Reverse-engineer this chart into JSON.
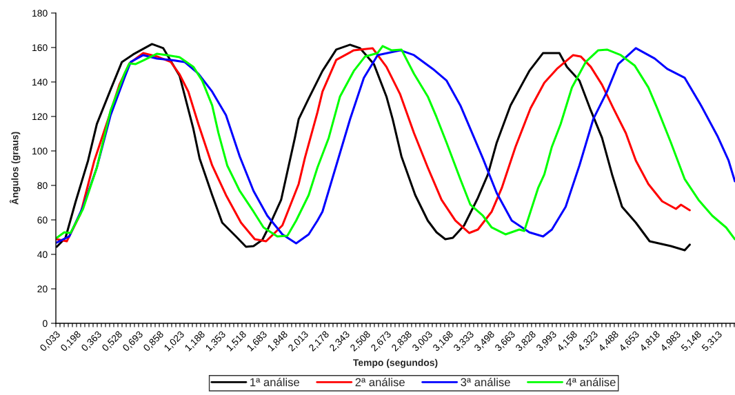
{
  "chart_data": {
    "type": "line",
    "xlabel": "Tempo (segundos)",
    "ylabel": "Ângulos (graus)",
    "xlim": [
      0.033,
      5.451
    ],
    "ylim": [
      0,
      180
    ],
    "yticks": [
      0,
      20,
      40,
      60,
      80,
      100,
      120,
      140,
      160,
      180
    ],
    "xticks": [
      {
        "value": 0.033,
        "label": "0,033"
      },
      {
        "value": 0.066,
        "label": null
      },
      {
        "value": 0.099,
        "label": null
      },
      {
        "value": 0.132,
        "label": null
      },
      {
        "value": 0.165,
        "label": null
      },
      {
        "value": 0.198,
        "label": "0,198"
      },
      {
        "value": 0.231,
        "label": null
      },
      {
        "value": 0.264,
        "label": null
      },
      {
        "value": 0.297,
        "label": null
      },
      {
        "value": 0.33,
        "label": null
      },
      {
        "value": 0.363,
        "label": "0,363"
      },
      {
        "value": 0.396,
        "label": null
      },
      {
        "value": 0.429,
        "label": null
      },
      {
        "value": 0.462,
        "label": null
      },
      {
        "value": 0.495,
        "label": null
      },
      {
        "value": 0.528,
        "label": "0,528"
      },
      {
        "value": 0.561,
        "label": null
      },
      {
        "value": 0.594,
        "label": null
      },
      {
        "value": 0.627,
        "label": null
      },
      {
        "value": 0.66,
        "label": null
      },
      {
        "value": 0.693,
        "label": "0,693"
      },
      {
        "value": 0.726,
        "label": null
      },
      {
        "value": 0.759,
        "label": null
      },
      {
        "value": 0.792,
        "label": null
      },
      {
        "value": 0.825,
        "label": null
      },
      {
        "value": 0.858,
        "label": "0,858"
      },
      {
        "value": 0.891,
        "label": null
      },
      {
        "value": 0.924,
        "label": null
      },
      {
        "value": 0.957,
        "label": null
      },
      {
        "value": 0.99,
        "label": null
      },
      {
        "value": 1.023,
        "label": "1,023"
      },
      {
        "value": 1.056,
        "label": null
      },
      {
        "value": 1.089,
        "label": null
      },
      {
        "value": 1.122,
        "label": null
      },
      {
        "value": 1.155,
        "label": null
      },
      {
        "value": 1.188,
        "label": "1,188"
      },
      {
        "value": 1.221,
        "label": null
      },
      {
        "value": 1.254,
        "label": null
      },
      {
        "value": 1.287,
        "label": null
      },
      {
        "value": 1.32,
        "label": null
      },
      {
        "value": 1.353,
        "label": "1,353"
      },
      {
        "value": 1.386,
        "label": null
      },
      {
        "value": 1.419,
        "label": null
      },
      {
        "value": 1.452,
        "label": null
      },
      {
        "value": 1.485,
        "label": null
      },
      {
        "value": 1.518,
        "label": "1,518"
      },
      {
        "value": 1.551,
        "label": null
      },
      {
        "value": 1.584,
        "label": null
      },
      {
        "value": 1.617,
        "label": null
      },
      {
        "value": 1.65,
        "label": null
      },
      {
        "value": 1.683,
        "label": "1,683"
      },
      {
        "value": 1.716,
        "label": null
      },
      {
        "value": 1.749,
        "label": null
      },
      {
        "value": 1.782,
        "label": null
      },
      {
        "value": 1.815,
        "label": null
      },
      {
        "value": 1.848,
        "label": "1,848"
      },
      {
        "value": 1.881,
        "label": null
      },
      {
        "value": 1.914,
        "label": null
      },
      {
        "value": 1.947,
        "label": null
      },
      {
        "value": 1.98,
        "label": null
      },
      {
        "value": 2.013,
        "label": "2,013"
      },
      {
        "value": 2.046,
        "label": null
      },
      {
        "value": 2.079,
        "label": null
      },
      {
        "value": 2.112,
        "label": null
      },
      {
        "value": 2.145,
        "label": null
      },
      {
        "value": 2.178,
        "label": "2,178"
      },
      {
        "value": 2.211,
        "label": null
      },
      {
        "value": 2.244,
        "label": null
      },
      {
        "value": 2.277,
        "label": null
      },
      {
        "value": 2.31,
        "label": null
      },
      {
        "value": 2.343,
        "label": "2,343"
      },
      {
        "value": 2.376,
        "label": null
      },
      {
        "value": 2.409,
        "label": null
      },
      {
        "value": 2.442,
        "label": null
      },
      {
        "value": 2.475,
        "label": null
      },
      {
        "value": 2.508,
        "label": "2,508"
      },
      {
        "value": 2.541,
        "label": null
      },
      {
        "value": 2.574,
        "label": null
      },
      {
        "value": 2.607,
        "label": null
      },
      {
        "value": 2.64,
        "label": null
      },
      {
        "value": 2.673,
        "label": "2,673"
      },
      {
        "value": 2.706,
        "label": null
      },
      {
        "value": 2.739,
        "label": null
      },
      {
        "value": 2.772,
        "label": null
      },
      {
        "value": 2.805,
        "label": null
      },
      {
        "value": 2.838,
        "label": "2,838"
      },
      {
        "value": 2.871,
        "label": null
      },
      {
        "value": 2.904,
        "label": null
      },
      {
        "value": 2.937,
        "label": null
      },
      {
        "value": 2.97,
        "label": null
      },
      {
        "value": 3.003,
        "label": "3,003"
      },
      {
        "value": 3.036,
        "label": null
      },
      {
        "value": 3.069,
        "label": null
      },
      {
        "value": 3.102,
        "label": null
      },
      {
        "value": 3.135,
        "label": null
      },
      {
        "value": 3.168,
        "label": "3,168"
      },
      {
        "value": 3.201,
        "label": null
      },
      {
        "value": 3.234,
        "label": null
      },
      {
        "value": 3.267,
        "label": null
      },
      {
        "value": 3.3,
        "label": null
      },
      {
        "value": 3.333,
        "label": "3,333"
      },
      {
        "value": 3.366,
        "label": null
      },
      {
        "value": 3.399,
        "label": null
      },
      {
        "value": 3.432,
        "label": null
      },
      {
        "value": 3.465,
        "label": null
      },
      {
        "value": 3.498,
        "label": "3,498"
      },
      {
        "value": 3.531,
        "label": null
      },
      {
        "value": 3.564,
        "label": null
      },
      {
        "value": 3.597,
        "label": null
      },
      {
        "value": 3.63,
        "label": null
      },
      {
        "value": 3.663,
        "label": "3,663"
      },
      {
        "value": 3.696,
        "label": null
      },
      {
        "value": 3.729,
        "label": null
      },
      {
        "value": 3.762,
        "label": null
      },
      {
        "value": 3.795,
        "label": null
      },
      {
        "value": 3.828,
        "label": "3,828"
      },
      {
        "value": 3.861,
        "label": null
      },
      {
        "value": 3.894,
        "label": null
      },
      {
        "value": 3.927,
        "label": null
      },
      {
        "value": 3.96,
        "label": null
      },
      {
        "value": 3.993,
        "label": "3,993"
      },
      {
        "value": 4.026,
        "label": null
      },
      {
        "value": 4.059,
        "label": null
      },
      {
        "value": 4.092,
        "label": null
      },
      {
        "value": 4.125,
        "label": null
      },
      {
        "value": 4.158,
        "label": "4,158"
      },
      {
        "value": 4.191,
        "label": null
      },
      {
        "value": 4.224,
        "label": null
      },
      {
        "value": 4.257,
        "label": null
      },
      {
        "value": 4.29,
        "label": null
      },
      {
        "value": 4.323,
        "label": "4,323"
      },
      {
        "value": 4.356,
        "label": null
      },
      {
        "value": 4.389,
        "label": null
      },
      {
        "value": 4.422,
        "label": null
      },
      {
        "value": 4.455,
        "label": null
      },
      {
        "value": 4.488,
        "label": "4,488"
      },
      {
        "value": 4.521,
        "label": null
      },
      {
        "value": 4.554,
        "label": null
      },
      {
        "value": 4.587,
        "label": null
      },
      {
        "value": 4.62,
        "label": null
      },
      {
        "value": 4.653,
        "label": "4,653"
      },
      {
        "value": 4.686,
        "label": null
      },
      {
        "value": 4.719,
        "label": null
      },
      {
        "value": 4.752,
        "label": null
      },
      {
        "value": 4.785,
        "label": null
      },
      {
        "value": 4.818,
        "label": "4,818"
      },
      {
        "value": 4.851,
        "label": null
      },
      {
        "value": 4.884,
        "label": null
      },
      {
        "value": 4.917,
        "label": null
      },
      {
        "value": 4.95,
        "label": null
      },
      {
        "value": 4.983,
        "label": "4,983"
      },
      {
        "value": 5.016,
        "label": null
      },
      {
        "value": 5.049,
        "label": null
      },
      {
        "value": 5.082,
        "label": null
      },
      {
        "value": 5.115,
        "label": null
      },
      {
        "value": 5.148,
        "label": "5,148"
      },
      {
        "value": 5.181,
        "label": null
      },
      {
        "value": 5.214,
        "label": null
      },
      {
        "value": 5.247,
        "label": null
      },
      {
        "value": 5.28,
        "label": null
      },
      {
        "value": 5.313,
        "label": "5,313"
      },
      {
        "value": 5.346,
        "label": null
      },
      {
        "value": 5.379,
        "label": null
      },
      {
        "value": 5.412,
        "label": null
      },
      {
        "value": 5.445,
        "label": null
      }
    ],
    "grid": false,
    "legend": "bottom",
    "marker": "none",
    "line_style": "solid",
    "series": [
      {
        "name": "1ª análise",
        "color": "#000000",
        "x": [
          0.04,
          0.11,
          0.19,
          0.29,
          0.36,
          0.47,
          0.56,
          0.65,
          0.8,
          0.89,
          1.02,
          1.13,
          1.18,
          1.28,
          1.36,
          1.47,
          1.55,
          1.61,
          1.68,
          1.73,
          1.83,
          1.94,
          1.97,
          2.05,
          2.16,
          2.27,
          2.38,
          2.46,
          2.57,
          2.67,
          2.72,
          2.79,
          2.9,
          3.0,
          3.07,
          3.14,
          3.2,
          3.29,
          3.4,
          3.48,
          3.55,
          3.66,
          3.81,
          3.92,
          4.05,
          4.11,
          4.21,
          4.3,
          4.39,
          4.47,
          4.55,
          4.66,
          4.77,
          4.94,
          5.05,
          5.09
        ],
        "values": [
          44.4,
          49.6,
          70.4,
          94.4,
          115.6,
          135.6,
          151.6,
          156,
          162,
          159.6,
          143.6,
          112.8,
          95.6,
          74.4,
          58.4,
          50.4,
          44.4,
          44.8,
          48.4,
          55.6,
          71.6,
          107.6,
          118.4,
          130.4,
          146.4,
          158.8,
          161.6,
          159.6,
          150.4,
          131.6,
          118.4,
          96.8,
          74.4,
          59.6,
          52.8,
          48.8,
          49.6,
          56.8,
          72.8,
          86.4,
          104.8,
          126.4,
          146.4,
          156.8,
          156.8,
          148.8,
          140.8,
          123.6,
          107.6,
          86.4,
          67.6,
          58.4,
          47.6,
          44.8,
          42.4,
          45.6
        ]
      },
      {
        "name": "2ª análise",
        "color": "#ff0000",
        "x": [
          0.04,
          0.12,
          0.23,
          0.34,
          0.45,
          0.54,
          0.62,
          0.73,
          0.84,
          0.95,
          1.02,
          1.09,
          1.17,
          1.28,
          1.39,
          1.51,
          1.62,
          1.71,
          1.84,
          1.97,
          2.02,
          2.12,
          2.16,
          2.27,
          2.41,
          2.56,
          2.67,
          2.78,
          2.89,
          3.0,
          3.11,
          3.22,
          3.33,
          3.4,
          3.51,
          3.59,
          3.7,
          3.82,
          3.93,
          4.03,
          4.16,
          4.22,
          4.3,
          4.39,
          4.48,
          4.58,
          4.66,
          4.76,
          4.87,
          4.98,
          5.02,
          5.09
        ],
        "values": [
          48.8,
          47.6,
          63.6,
          94.4,
          118.4,
          138.4,
          150.8,
          156.8,
          154.8,
          151.6,
          144.4,
          134.4,
          115.6,
          91.6,
          74.4,
          58.4,
          48.8,
          47.6,
          56.8,
          80.8,
          96,
          122.4,
          134.4,
          152.8,
          158.4,
          159.6,
          148.8,
          132.8,
          110.4,
          90.4,
          71.6,
          59.6,
          52.4,
          54.4,
          64.8,
          78.4,
          102.4,
          124.8,
          139.6,
          147.6,
          155.6,
          154.8,
          148.8,
          138.4,
          124.8,
          110.4,
          94.4,
          80.8,
          70.8,
          66.4,
          68.8,
          65.6
        ]
      },
      {
        "name": "3ª análise",
        "color": "#0000ff",
        "x": [
          0.04,
          0.14,
          0.25,
          0.36,
          0.47,
          0.58,
          0.63,
          0.73,
          0.84,
          0.95,
          1.06,
          1.17,
          1.28,
          1.39,
          1.5,
          1.61,
          1.72,
          1.84,
          1.95,
          2.05,
          2.12,
          2.16,
          2.27,
          2.38,
          2.49,
          2.6,
          2.78,
          2.89,
          3.04,
          3.15,
          3.26,
          3.37,
          3.44,
          3.55,
          3.67,
          3.81,
          3.92,
          3.99,
          4.1,
          4.21,
          4.32,
          4.43,
          4.52,
          4.66,
          4.81,
          4.91,
          5.05,
          5.18,
          5.31,
          5.4,
          5.45
        ],
        "values": [
          46.8,
          50.4,
          67.6,
          90.4,
          120.8,
          142.4,
          151.6,
          155.6,
          153.6,
          152.8,
          151.6,
          144.8,
          134.4,
          120.8,
          96.8,
          76.8,
          62.4,
          51.6,
          46.4,
          51.6,
          59.6,
          64.8,
          91.6,
          118.4,
          142.4,
          155.6,
          158.4,
          155.6,
          147.6,
          140.8,
          126.4,
          107.6,
          95.6,
          75.6,
          59.6,
          52.8,
          50.4,
          54.4,
          67.6,
          91.6,
          118.4,
          134.4,
          150.4,
          159.6,
          153.6,
          147.6,
          142.4,
          126.4,
          108.8,
          94.4,
          82.4
        ]
      },
      {
        "name": "4ª análise",
        "color": "#00ff00",
        "x": [
          0.04,
          0.1,
          0.15,
          0.25,
          0.36,
          0.47,
          0.58,
          0.62,
          0.67,
          0.74,
          0.84,
          0.92,
          1.02,
          1.13,
          1.2,
          1.28,
          1.33,
          1.4,
          1.5,
          1.61,
          1.69,
          1.8,
          1.88,
          1.95,
          2.05,
          2.12,
          2.21,
          2.3,
          2.41,
          2.5,
          2.6,
          2.64,
          2.71,
          2.79,
          2.89,
          3.0,
          3.07,
          3.15,
          3.26,
          3.34,
          3.44,
          3.51,
          3.62,
          3.73,
          3.77,
          3.88,
          3.93,
          3.99,
          4.06,
          4.15,
          4.26,
          4.36,
          4.43,
          4.54,
          4.65,
          4.76,
          4.83,
          4.94,
          5.05,
          5.16,
          5.27,
          5.38,
          5.45
        ],
        "values": [
          49.6,
          52.8,
          52.4,
          66.4,
          90.4,
          123.6,
          144.8,
          150.8,
          150.4,
          152.8,
          156.4,
          155.6,
          154.4,
          148.8,
          140.8,
          126.4,
          110.4,
          91.6,
          76.8,
          64.8,
          55.6,
          50.4,
          50.8,
          59.6,
          74.4,
          90.4,
          107.6,
          131.6,
          146.4,
          154.8,
          156.8,
          160.8,
          158.4,
          158.8,
          144.8,
          131.6,
          119.6,
          104.8,
          83.6,
          68.8,
          62.4,
          55.6,
          51.6,
          54.4,
          53.6,
          78.4,
          86.4,
          102.4,
          115.6,
          136.8,
          151.6,
          158.4,
          158.8,
          155.6,
          149.6,
          136.8,
          124.8,
          104.8,
          83.6,
          71.6,
          62.4,
          55.6,
          48.8
        ]
      }
    ]
  }
}
